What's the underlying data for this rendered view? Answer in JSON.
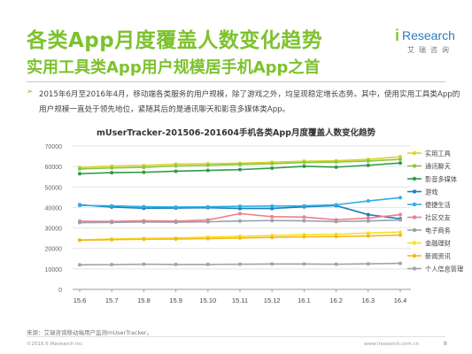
{
  "header": {
    "title": "各类App月度覆盖人数变化趋势",
    "subtitle": "实用工具类App用户规模居手机App之首"
  },
  "logo": {
    "mark": "i",
    "word": "Research",
    "sub": "艾瑞咨询"
  },
  "summary": {
    "bullet": "➢",
    "text": "2015年6月至2016年4月，移动端各类服务的用户规模，除了游戏之外，均呈现稳定增长态势。其中，使用实用工具类App的用户规模一直处于领先地位，紧随其后的是通讯聊天和影音多媒体类App。"
  },
  "footer": {
    "source": "来源：艾瑞咨询移动端用户监测mUserTracker。",
    "copyright": "©2016.6 iResearch Inc",
    "website": "www.iresearch.com.cn",
    "page": "8"
  },
  "colors": {
    "brand_green": "#7dc22e",
    "brand_blue": "#2c7dbf",
    "grid": "#e4e4e4",
    "axis": "#999999"
  },
  "chart_data": {
    "type": "line",
    "title": "mUserTracker-201506-201604手机各类App月度覆盖人数变化趋势",
    "xlabel": "",
    "ylabel": "",
    "categories": [
      "15.6",
      "15.7",
      "15.8",
      "15.9",
      "15.10",
      "15.11",
      "15.12",
      "16.1",
      "16.2",
      "16.3",
      "16.4"
    ],
    "ylim": [
      0,
      70000
    ],
    "yticks": [
      0,
      10000,
      20000,
      30000,
      40000,
      50000,
      60000,
      70000
    ],
    "grid": true,
    "legend_position": "right",
    "series": [
      {
        "name": "实用工具",
        "color": "#d7d62a",
        "values": [
          59500,
          60200,
          60500,
          61200,
          61400,
          61600,
          62100,
          62600,
          62800,
          63500,
          64800
        ]
      },
      {
        "name": "通讯聊天",
        "color": "#8cc63f",
        "values": [
          58800,
          59300,
          59600,
          60300,
          60600,
          61000,
          61400,
          62000,
          62200,
          62700,
          63500
        ]
      },
      {
        "name": "影音多媒体",
        "color": "#2e9a48",
        "values": [
          56500,
          57000,
          57200,
          57700,
          58100,
          58500,
          59200,
          60100,
          59700,
          60600,
          61700
        ]
      },
      {
        "name": "游戏",
        "color": "#1a7fc0",
        "values": [
          41300,
          40200,
          39600,
          39700,
          39900,
          39500,
          39500,
          40300,
          40900,
          36500,
          34500
        ]
      },
      {
        "name": "便捷生活",
        "color": "#2bb0e6",
        "values": [
          41000,
          40800,
          40400,
          40200,
          40300,
          40600,
          40700,
          40800,
          41300,
          43200,
          44800
        ]
      },
      {
        "name": "社区交友",
        "color": "#ef7d8e",
        "values": [
          33300,
          33200,
          33500,
          33300,
          33900,
          37000,
          35500,
          35300,
          34000,
          34800,
          36500
        ]
      },
      {
        "name": "电子商务",
        "color": "#9aa1a8",
        "values": [
          32600,
          32700,
          32900,
          32800,
          33000,
          33400,
          33600,
          33500,
          33100,
          33400,
          33900
        ]
      },
      {
        "name": "金融理财",
        "color": "#f7e020",
        "values": [
          24200,
          24600,
          24900,
          25100,
          25500,
          25900,
          26300,
          26700,
          26900,
          27500,
          28000
        ]
      },
      {
        "name": "新闻资讯",
        "color": "#f5b81b",
        "values": [
          24000,
          24300,
          24500,
          24600,
          24800,
          25100,
          25400,
          25700,
          25800,
          26100,
          26500
        ]
      },
      {
        "name": "个人信息管理",
        "color": "#a3a3a3",
        "values": [
          12000,
          12100,
          12300,
          12200,
          12200,
          12300,
          12400,
          12400,
          12300,
          12500,
          12700
        ]
      }
    ]
  }
}
